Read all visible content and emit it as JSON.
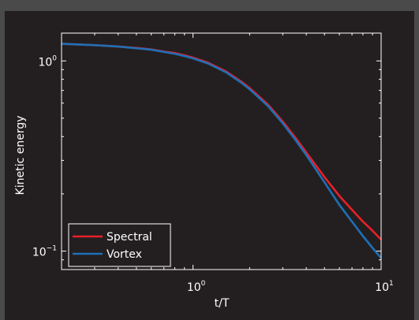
{
  "chart_data": {
    "type": "line",
    "xlabel": "t/T",
    "ylabel": "Kinetic energy",
    "x_scale": "log",
    "y_scale": "log",
    "xlim": [
      0.2,
      10
    ],
    "ylim": [
      0.08,
      1.4
    ],
    "grid": false,
    "legend_position": "bottom-left",
    "x_ticks": [
      {
        "value": 1,
        "base": "10",
        "exp": "0"
      },
      {
        "value": 10,
        "base": "10",
        "exp": "1"
      }
    ],
    "y_ticks": [
      {
        "value": 0.1,
        "base": "10",
        "exp": "−1"
      },
      {
        "value": 1,
        "base": "10",
        "exp": "0"
      }
    ],
    "series": [
      {
        "name": "Spectral",
        "color": "#e8202a",
        "x": [
          0.2,
          0.3,
          0.4,
          0.5,
          0.6,
          0.7,
          0.8,
          0.9,
          1.0,
          1.2,
          1.5,
          1.8,
          2.0,
          2.5,
          3.0,
          3.5,
          4.0,
          5.0,
          6.0,
          7.0,
          8.0,
          9.0,
          10.0
        ],
        "values": [
          1.23,
          1.21,
          1.19,
          1.17,
          1.15,
          1.12,
          1.1,
          1.07,
          1.04,
          0.98,
          0.88,
          0.78,
          0.72,
          0.59,
          0.48,
          0.395,
          0.33,
          0.245,
          0.195,
          0.165,
          0.143,
          0.128,
          0.115
        ]
      },
      {
        "name": "Vortex",
        "color": "#1f6fb5",
        "x": [
          0.2,
          0.3,
          0.4,
          0.5,
          0.6,
          0.7,
          0.8,
          0.9,
          1.0,
          1.2,
          1.5,
          1.8,
          2.0,
          2.5,
          3.0,
          3.5,
          4.0,
          5.0,
          6.0,
          7.0,
          8.0,
          9.0,
          10.0
        ],
        "values": [
          1.23,
          1.21,
          1.19,
          1.165,
          1.145,
          1.115,
          1.09,
          1.06,
          1.03,
          0.97,
          0.87,
          0.77,
          0.71,
          0.58,
          0.47,
          0.385,
          0.32,
          0.23,
          0.175,
          0.143,
          0.12,
          0.104,
          0.092
        ]
      }
    ]
  },
  "colors": {
    "figure_background": "#4a4a4a",
    "axes_background": "#231f20",
    "axes_border": "#ffffff",
    "legend_background": "#231f20",
    "legend_border": "#ffffff"
  }
}
